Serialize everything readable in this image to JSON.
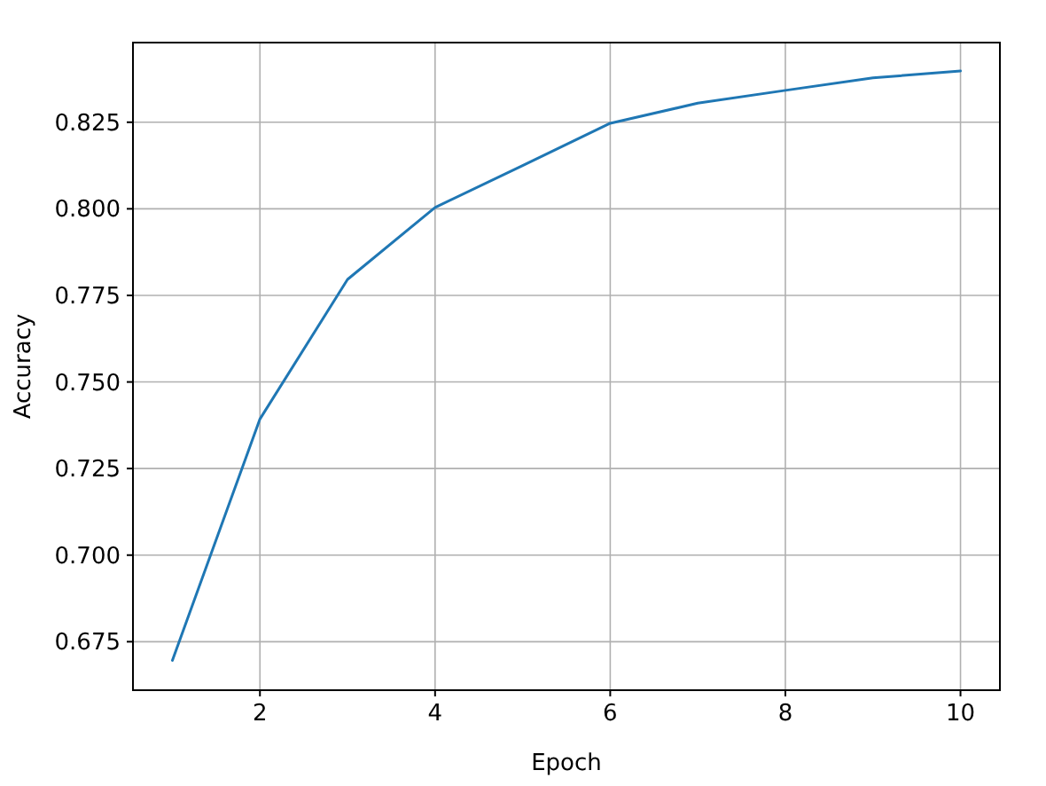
{
  "chart_data": {
    "type": "line",
    "xlabel": "Epoch",
    "ylabel": "Accuracy",
    "x": [
      1,
      2,
      3,
      4,
      5,
      6,
      7,
      8,
      9,
      10
    ],
    "series": [
      {
        "color": "#1f77b4",
        "values": [
          0.6696,
          0.7393,
          0.7796,
          0.8004,
          0.8125,
          0.8247,
          0.8305,
          0.8342,
          0.8378,
          0.8398
        ]
      }
    ],
    "xlim": [
      0.55,
      10.45
    ],
    "ylim": [
      0.661,
      0.848
    ],
    "xticks": [
      2,
      4,
      6,
      8,
      10
    ],
    "yticks": [
      {
        "value": 0.675,
        "label": "0.675"
      },
      {
        "value": 0.7,
        "label": "0.700"
      },
      {
        "value": 0.725,
        "label": "0.725"
      },
      {
        "value": 0.75,
        "label": "0.750"
      },
      {
        "value": 0.775,
        "label": "0.775"
      },
      {
        "value": 0.8,
        "label": "0.800"
      },
      {
        "value": 0.825,
        "label": "0.825"
      }
    ],
    "grid": true,
    "line_style": "solid",
    "marker": "none"
  }
}
